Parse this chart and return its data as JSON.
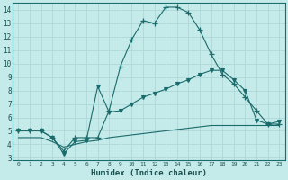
{
  "xlabel": "Humidex (Indice chaleur)",
  "bg_color": "#c5eaea",
  "grid_color": "#b0d8d8",
  "line_color": "#1a6b6b",
  "xlim": [
    -0.5,
    23.5
  ],
  "ylim": [
    2.8,
    14.5
  ],
  "xticks": [
    0,
    1,
    2,
    3,
    4,
    5,
    6,
    7,
    8,
    9,
    10,
    11,
    12,
    13,
    14,
    15,
    16,
    17,
    18,
    19,
    20,
    21,
    22,
    23
  ],
  "yticks": [
    3,
    4,
    5,
    6,
    7,
    8,
    9,
    10,
    11,
    12,
    13,
    14
  ],
  "line1_x": [
    0,
    1,
    2,
    3,
    4,
    5,
    6,
    7,
    8,
    9,
    10,
    11,
    12,
    13,
    14,
    15,
    16,
    17,
    18,
    19,
    20,
    21,
    22,
    23
  ],
  "line1_y": [
    5,
    5,
    5,
    4.5,
    3.5,
    4.5,
    4.5,
    4.5,
    6.5,
    9.8,
    11.8,
    13.2,
    13.0,
    14.2,
    14.2,
    13.8,
    12.5,
    10.7,
    9.2,
    8.5,
    7.5,
    6.5,
    5.5,
    5.5
  ],
  "line2_x": [
    0,
    1,
    2,
    3,
    4,
    5,
    6,
    7,
    8,
    9,
    10,
    11,
    12,
    13,
    14,
    15,
    16,
    17,
    18,
    19,
    20,
    21,
    22,
    23
  ],
  "line2_y": [
    5.0,
    5.0,
    5.0,
    4.5,
    3.3,
    4.2,
    4.3,
    8.3,
    6.4,
    6.5,
    7.0,
    7.5,
    7.8,
    8.1,
    8.5,
    8.8,
    9.2,
    9.5,
    9.5,
    8.8,
    8.0,
    5.8,
    5.5,
    5.7
  ],
  "line3_x": [
    0,
    1,
    2,
    3,
    4,
    5,
    6,
    7,
    8,
    9,
    10,
    11,
    12,
    13,
    14,
    15,
    16,
    17,
    18,
    19,
    20,
    21,
    22,
    23
  ],
  "line3_y": [
    4.5,
    4.5,
    4.5,
    4.2,
    3.8,
    4.0,
    4.2,
    4.3,
    4.5,
    4.6,
    4.7,
    4.8,
    4.9,
    5.0,
    5.1,
    5.2,
    5.3,
    5.4,
    5.4,
    5.4,
    5.4,
    5.4,
    5.4,
    5.4
  ]
}
